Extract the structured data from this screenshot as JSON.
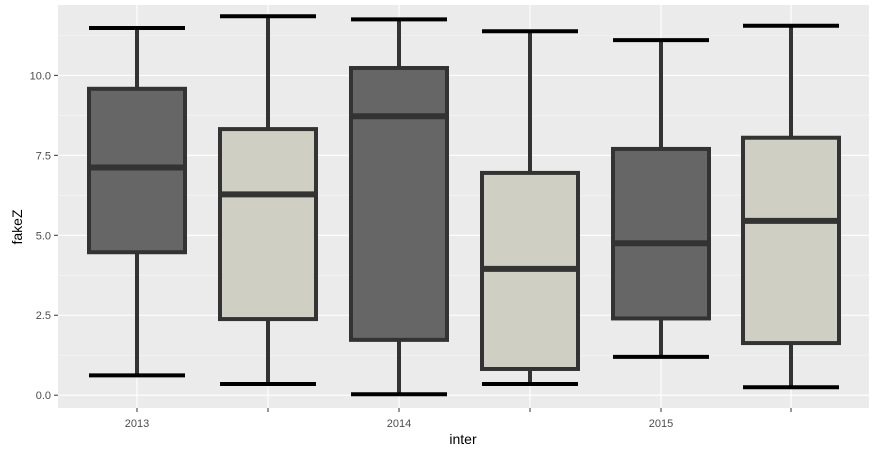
{
  "chart_data": {
    "type": "boxplot",
    "title": "",
    "xlabel": "inter",
    "ylabel": "fakeZ",
    "ylim": [
      -0.4,
      12.2
    ],
    "y_ticks": [
      0.0,
      2.5,
      5.0,
      7.5,
      10.0
    ],
    "y_tick_labels": [
      "0.0",
      "2.5",
      "5.0",
      "7.5",
      "10.0"
    ],
    "x_tick_labels": [
      "2013",
      "",
      "2014",
      "",
      "2015",
      ""
    ],
    "grid": true,
    "legend": "none",
    "colors": {
      "panel_background": "#ebebeb",
      "grid_major": "#ffffff",
      "grid_minor": "#f5f5f5",
      "box_stroke": "#333333",
      "dark_fill": "#666666",
      "light_fill": "#cfcfc4",
      "whisker_cap": "#000000"
    },
    "boxes": [
      {
        "category": "2013",
        "min": 0.62,
        "q1": 4.47,
        "median": 7.12,
        "q3": 9.58,
        "max": 11.48,
        "fill": "dark"
      },
      {
        "category": "",
        "min": 0.35,
        "q1": 2.38,
        "median": 6.28,
        "q3": 8.32,
        "max": 11.85,
        "fill": "light"
      },
      {
        "category": "2014",
        "min": 0.03,
        "q1": 1.73,
        "median": 8.72,
        "q3": 10.23,
        "max": 11.75,
        "fill": "dark"
      },
      {
        "category": "",
        "min": 0.35,
        "q1": 0.82,
        "median": 3.95,
        "q3": 6.95,
        "max": 11.38,
        "fill": "light"
      },
      {
        "category": "2015",
        "min": 1.2,
        "q1": 2.4,
        "median": 4.75,
        "q3": 7.7,
        "max": 11.1,
        "fill": "dark"
      },
      {
        "category": "",
        "min": 0.25,
        "q1": 1.63,
        "median": 5.45,
        "q3": 8.05,
        "max": 11.55,
        "fill": "light"
      }
    ]
  }
}
